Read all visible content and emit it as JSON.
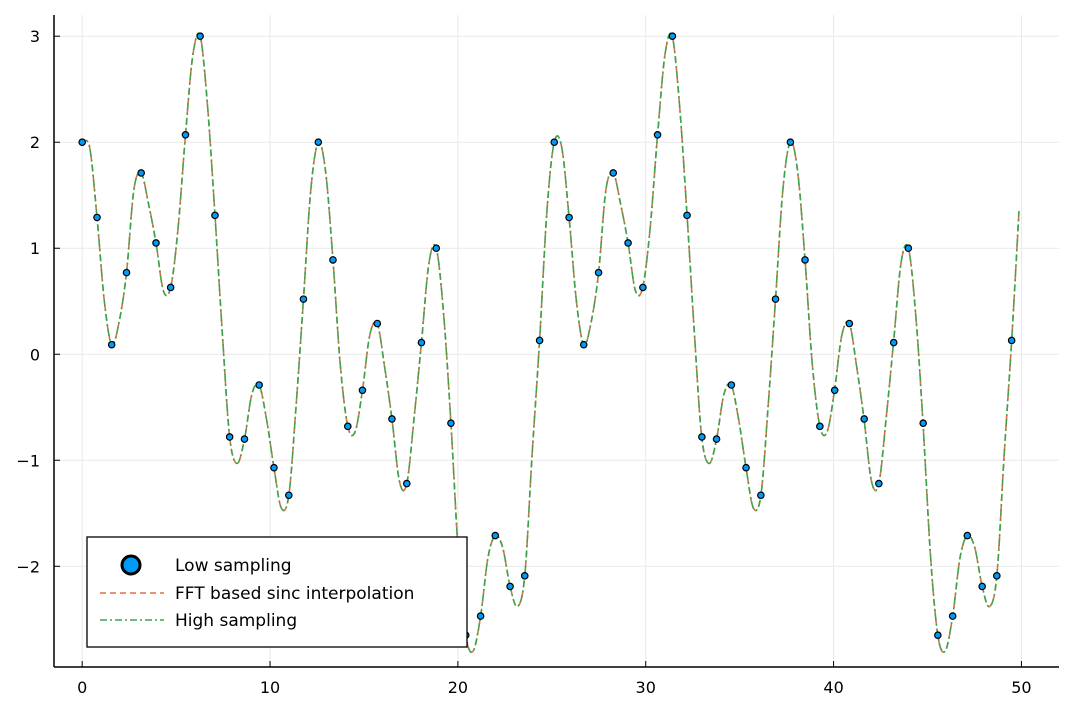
{
  "chart_data": {
    "type": "line",
    "title": "",
    "xlabel": "",
    "ylabel": "",
    "xlim": [
      -1.5,
      52
    ],
    "ylim": [
      -2.95,
      3.2
    ],
    "xticks": [
      0,
      10,
      20,
      30,
      40,
      50
    ],
    "yticks": [
      -2,
      -1,
      0,
      1,
      2,
      3
    ],
    "xtick_labels": [
      "0",
      "10",
      "20",
      "30",
      "40",
      "50"
    ],
    "ytick_labels": [
      "−2",
      "−1",
      "0",
      "1",
      "2",
      "3"
    ],
    "grid": true,
    "legend_position": "bottom-left",
    "legend": [
      "Low sampling",
      "FFT based sinc interpolation",
      "High sampling"
    ],
    "colors": {
      "low": "#009AFA",
      "fft": "#E26F46",
      "high": "#3DA44D"
    },
    "signal": {
      "period": 25.13,
      "x_end": 50.2
    },
    "series": [
      {
        "name": "Low sampling",
        "style": "scatter",
        "x": [
          0,
          0.79,
          1.57,
          2.36,
          3.14,
          3.93,
          4.71,
          5.5,
          6.28,
          7.07,
          7.85,
          8.64,
          9.42,
          10.21,
          11.0,
          11.78,
          12.57,
          13.35,
          14.14,
          14.92,
          15.71,
          16.49,
          17.28,
          18.06,
          18.85,
          19.63,
          20.42,
          21.21,
          21.99,
          22.78,
          23.56,
          24.35,
          25.13,
          25.92,
          26.7,
          27.49,
          28.27,
          29.06,
          29.85,
          30.63,
          31.42,
          32.2,
          32.99,
          33.77,
          34.56,
          35.34,
          36.13,
          36.91,
          37.7,
          38.48,
          39.27,
          40.06,
          40.84,
          41.63,
          42.41,
          43.2,
          43.98,
          44.77,
          45.55,
          46.34,
          47.12,
          47.91,
          48.69,
          49.48
        ],
        "y": [
          2.0,
          1.29,
          0.09,
          0.77,
          1.71,
          1.05,
          0.63,
          2.07,
          3.0,
          1.31,
          -0.78,
          -0.8,
          -0.29,
          -1.07,
          -1.33,
          0.52,
          2.0,
          0.89,
          -0.68,
          -0.34,
          0.29,
          -0.61,
          -1.22,
          0.11,
          1.0,
          -0.65,
          -2.65,
          -2.47,
          -1.71,
          -2.19,
          -2.09,
          0.13,
          2.0,
          1.29,
          0.09,
          0.77,
          1.71,
          1.05,
          0.63,
          2.07,
          3.0,
          1.31,
          -0.78,
          -0.8,
          -0.29,
          -1.07,
          -1.33,
          0.52,
          2.0,
          0.89,
          -0.68,
          -0.34,
          0.29,
          -0.61,
          -1.22,
          0.11,
          1.0,
          -0.65,
          -2.65,
          -2.47,
          -1.71,
          -2.19,
          -2.09,
          0.13
        ]
      },
      {
        "name": "FFT based sinc interpolation",
        "style": "dashed",
        "x": [
          0,
          0.4,
          0.79,
          1.18,
          1.57,
          1.96,
          2.36,
          2.75,
          3.14,
          3.53,
          3.93,
          4.32,
          4.71,
          5.1,
          5.5,
          5.89,
          6.28,
          6.67,
          7.07,
          7.46,
          7.85,
          8.25,
          8.64,
          9.03,
          9.42,
          9.82,
          10.21,
          10.6,
          11.0,
          11.39,
          11.78,
          12.17,
          12.57,
          12.96,
          13.35,
          13.74,
          14.14,
          14.53,
          14.92,
          15.31,
          15.71,
          16.1,
          16.49,
          16.89,
          17.28,
          17.67,
          18.06,
          18.46,
          18.85,
          19.24,
          19.63,
          20.03,
          20.42,
          20.81,
          21.21,
          21.6,
          21.99,
          22.38,
          22.78,
          23.17,
          23.56,
          23.95,
          24.35,
          24.74,
          25.13
        ],
        "y": [
          2.0,
          1.95,
          1.29,
          0.5,
          0.09,
          0.3,
          0.77,
          1.55,
          1.71,
          1.42,
          1.05,
          0.6,
          0.63,
          1.18,
          2.07,
          2.82,
          3.0,
          2.35,
          1.31,
          0.2,
          -0.78,
          -1.03,
          -0.8,
          -0.38,
          -0.29,
          -0.62,
          -1.07,
          -1.45,
          -1.33,
          -0.48,
          0.52,
          1.55,
          2.0,
          1.72,
          0.89,
          -0.1,
          -0.68,
          -0.73,
          -0.34,
          0.18,
          0.29,
          -0.12,
          -0.61,
          -1.2,
          -1.22,
          -0.6,
          0.11,
          0.86,
          1.0,
          0.38,
          -0.65,
          -1.9,
          -2.65,
          -2.8,
          -2.47,
          -1.92,
          -1.71,
          -1.82,
          -2.19,
          -2.38,
          -2.09,
          -0.95,
          0.13,
          1.35,
          2.0
        ]
      },
      {
        "name": "High sampling",
        "style": "dashdot",
        "x": [
          0,
          0.4,
          0.79,
          1.18,
          1.57,
          1.96,
          2.36,
          2.75,
          3.14,
          3.53,
          3.93,
          4.32,
          4.71,
          5.1,
          5.5,
          5.89,
          6.28,
          6.67,
          7.07,
          7.46,
          7.85,
          8.25,
          8.64,
          9.03,
          9.42,
          9.82,
          10.21,
          10.6,
          11.0,
          11.39,
          11.78,
          12.17,
          12.57,
          12.96,
          13.35,
          13.74,
          14.14,
          14.53,
          14.92,
          15.31,
          15.71,
          16.1,
          16.49,
          16.89,
          17.28,
          17.67,
          18.06,
          18.46,
          18.85,
          19.24,
          19.63,
          20.03,
          20.42,
          20.81,
          21.21,
          21.6,
          21.99,
          22.38,
          22.78,
          23.17,
          23.56,
          23.95,
          24.35,
          24.74,
          25.13
        ],
        "y": [
          2.0,
          1.95,
          1.29,
          0.5,
          0.09,
          0.3,
          0.77,
          1.55,
          1.71,
          1.42,
          1.05,
          0.6,
          0.63,
          1.18,
          2.07,
          2.82,
          3.0,
          2.35,
          1.31,
          0.2,
          -0.78,
          -1.03,
          -0.8,
          -0.38,
          -0.29,
          -0.62,
          -1.07,
          -1.45,
          -1.33,
          -0.48,
          0.52,
          1.55,
          2.0,
          1.72,
          0.89,
          -0.1,
          -0.68,
          -0.73,
          -0.34,
          0.18,
          0.29,
          -0.12,
          -0.61,
          -1.2,
          -1.22,
          -0.6,
          0.11,
          0.86,
          1.0,
          0.38,
          -0.65,
          -1.9,
          -2.65,
          -2.8,
          -2.47,
          -1.92,
          -1.71,
          -1.82,
          -2.19,
          -2.38,
          -2.09,
          -0.95,
          0.13,
          1.35,
          2.0
        ]
      }
    ]
  }
}
